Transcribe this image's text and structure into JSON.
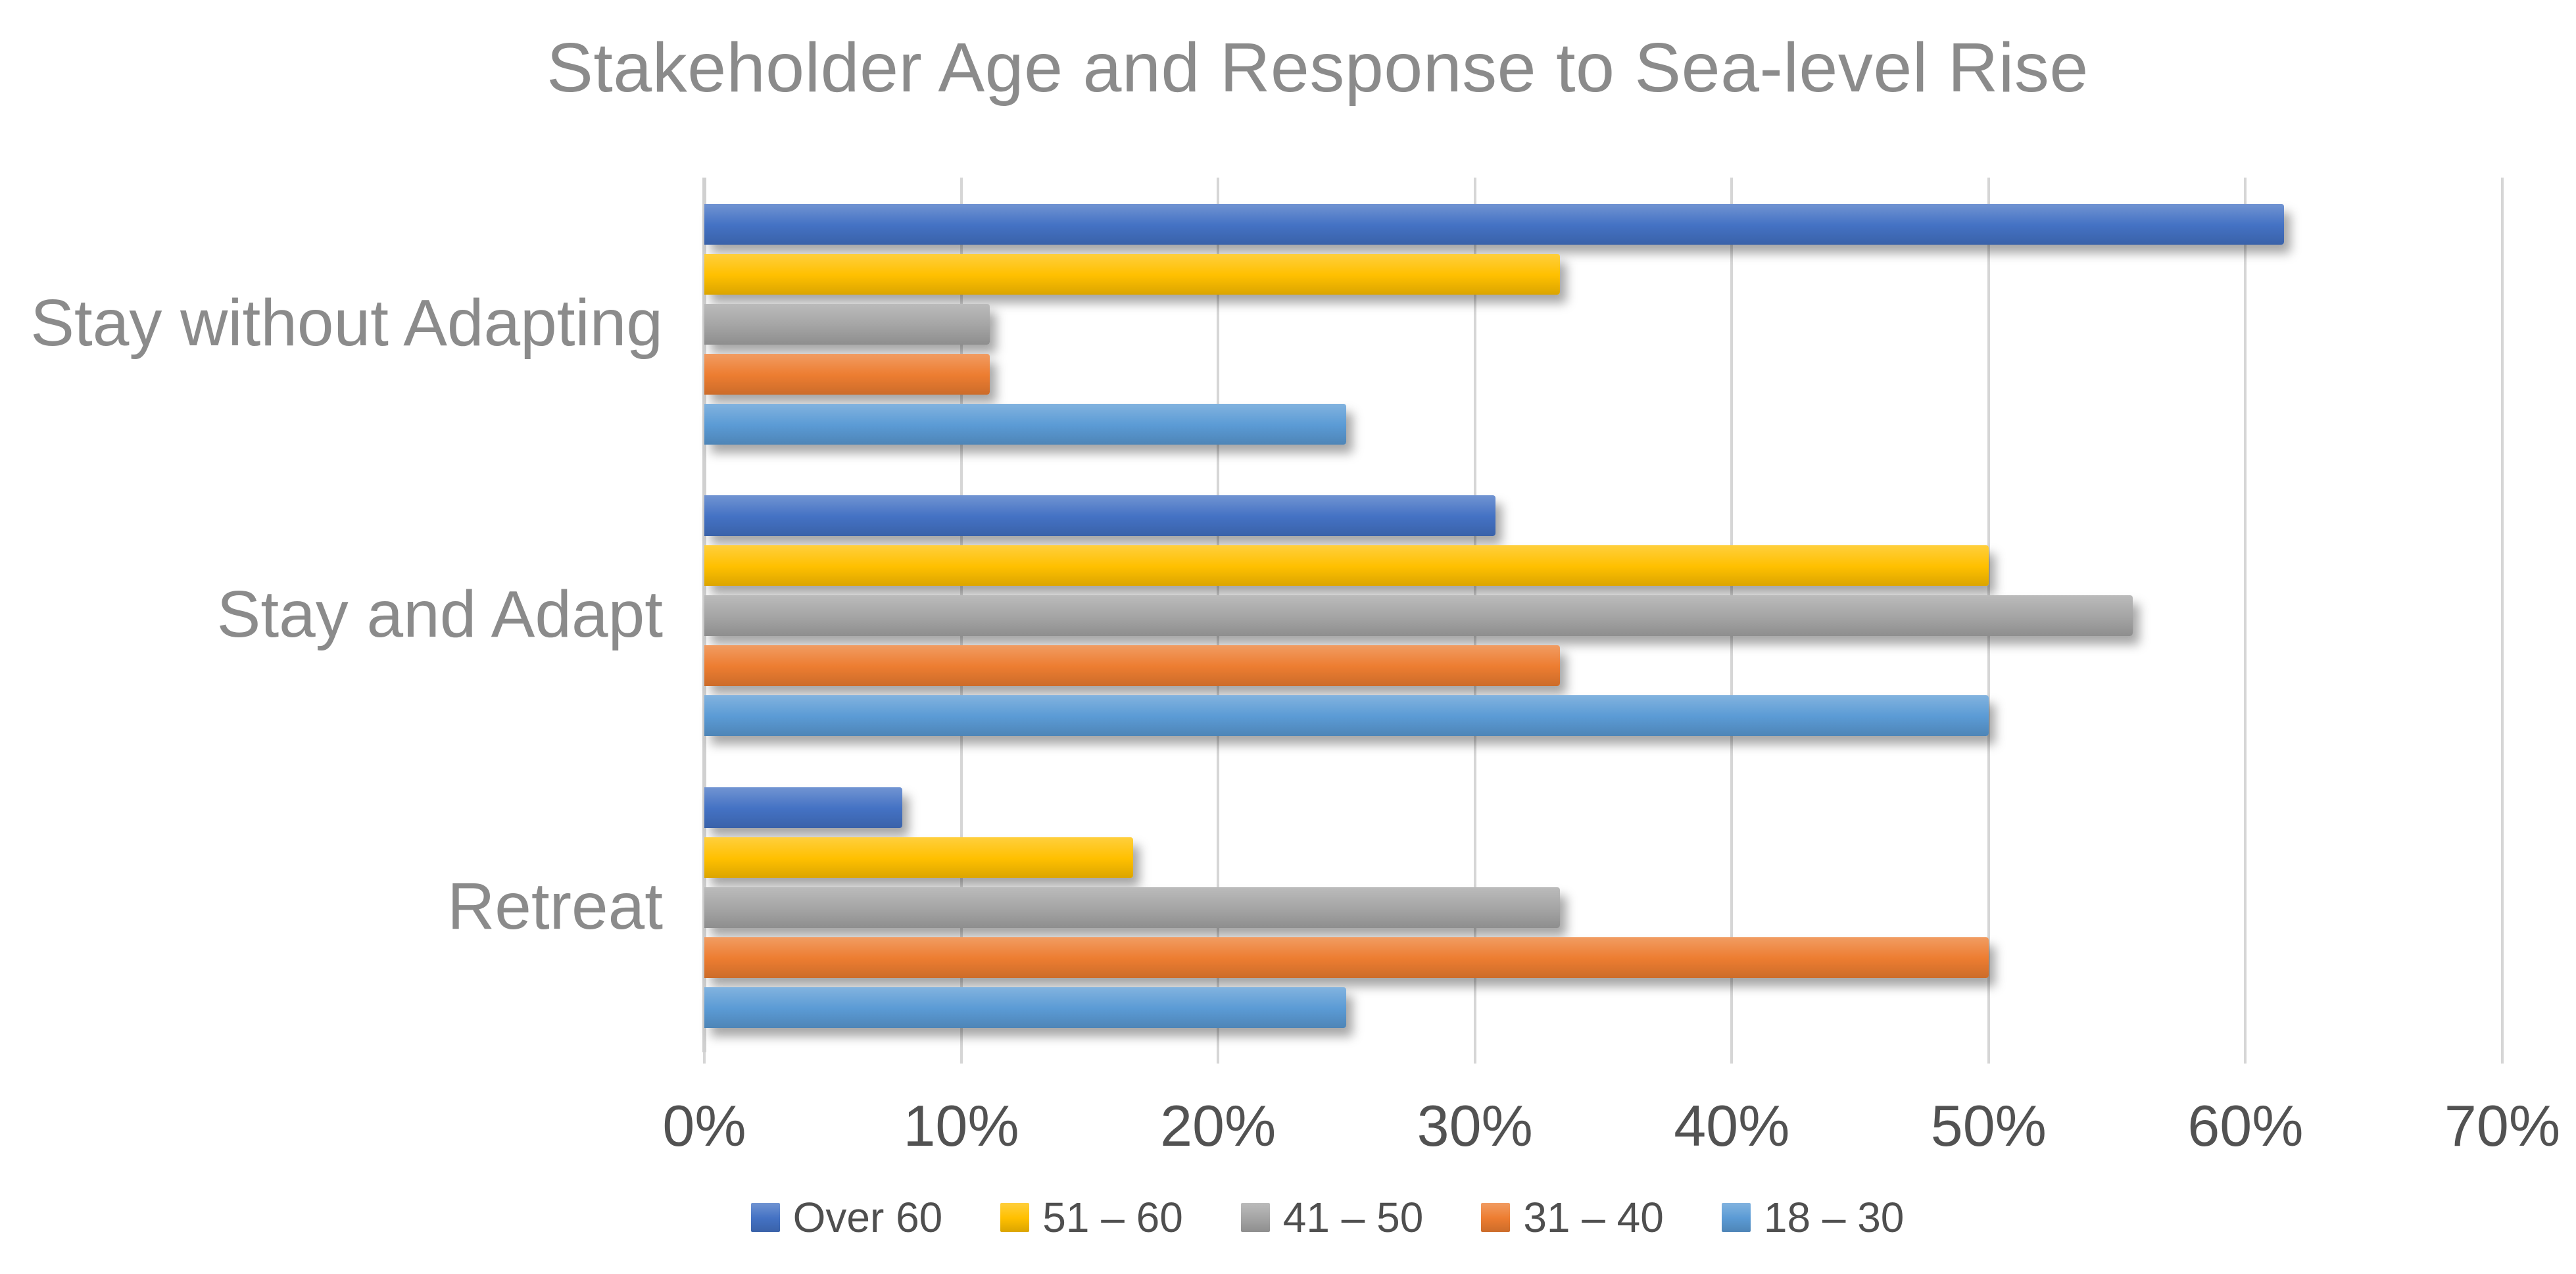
{
  "title": "Stakeholder Age and Response to Sea-level Rise",
  "colors": {
    "title_text": "#8b8b8b",
    "category_text": "#8b8b8b",
    "tick_text": "#525252",
    "legend_text": "#4f4f4f",
    "gridline": "#d6d6d6",
    "axis_line": "#d0d0d0",
    "background": "#ffffff"
  },
  "chart_data": {
    "type": "bar",
    "orientation": "horizontal",
    "title": "Stakeholder Age and Response to Sea-level Rise",
    "categories": [
      "Stay without Adapting",
      "Stay and Adapt",
      "Retreat"
    ],
    "series": [
      {
        "name": "Over 60",
        "color": "#4472C4",
        "values": [
          61.5,
          30.8,
          7.7
        ]
      },
      {
        "name": "51 – 60",
        "color": "#FFC000",
        "values": [
          33.3,
          50.0,
          16.7
        ]
      },
      {
        "name": "41 – 50",
        "color": "#A5A5A5",
        "values": [
          11.1,
          55.6,
          33.3
        ]
      },
      {
        "name": "31 – 40",
        "color": "#ED7D31",
        "values": [
          11.1,
          33.3,
          50.0
        ]
      },
      {
        "name": "18 – 30",
        "color": "#5B9BD5",
        "values": [
          25.0,
          50.0,
          25.0
        ]
      }
    ],
    "xlabel": "",
    "ylabel": "",
    "xlim": [
      0,
      70
    ],
    "x_ticks": [
      "0%",
      "10%",
      "20%",
      "30%",
      "40%",
      "50%",
      "60%",
      "70%"
    ],
    "grid": true,
    "legend_position": "bottom",
    "series_order_in_group_top_to_bottom": [
      "Over 60",
      "51 – 60",
      "41 – 50",
      "31 – 40",
      "18 – 30"
    ]
  }
}
